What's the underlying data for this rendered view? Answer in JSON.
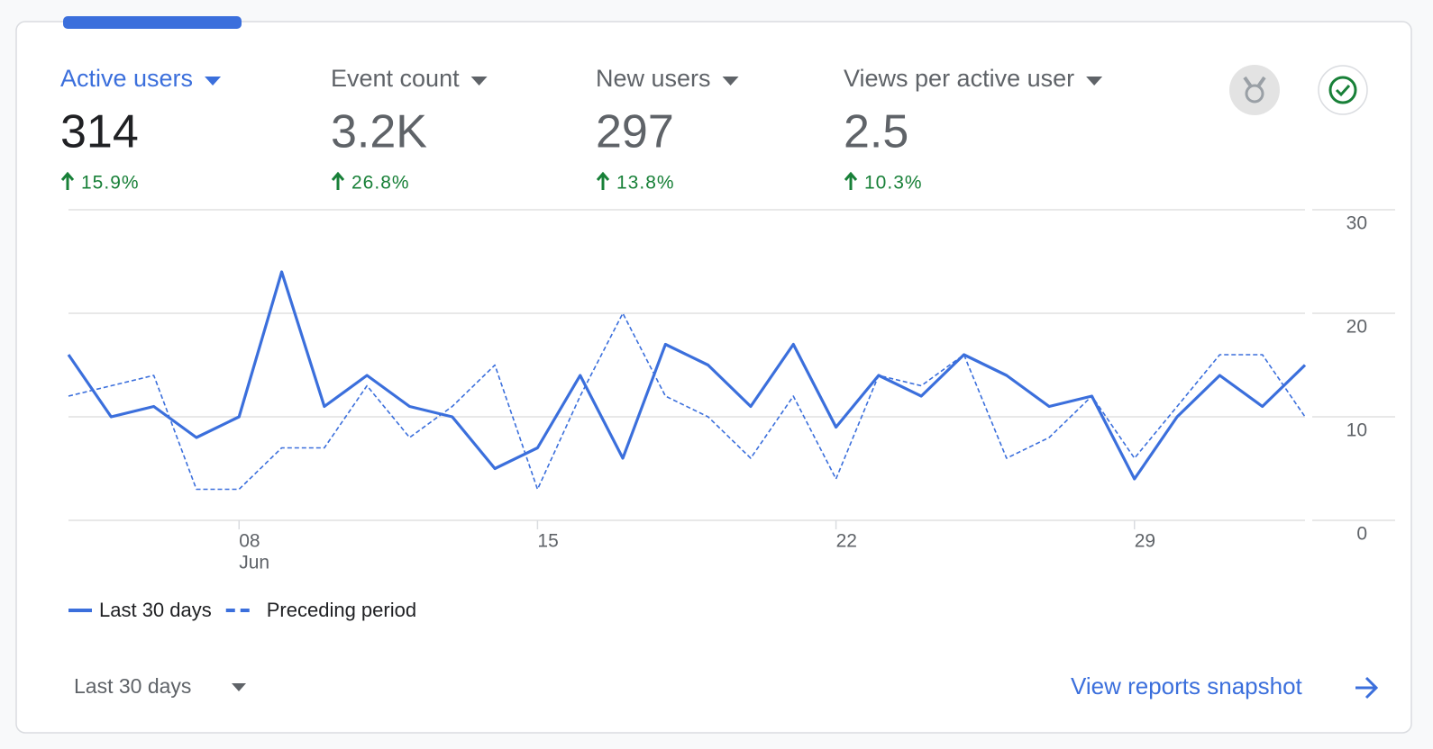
{
  "metrics": [
    {
      "label": "Active users",
      "value": "314",
      "change": "15.9%"
    },
    {
      "label": "Event count",
      "value": "3.2K",
      "change": "26.8%"
    },
    {
      "label": "New users",
      "value": "297",
      "change": "13.8%"
    },
    {
      "label": "Views per active user",
      "value": "2.5",
      "change": "10.3%"
    }
  ],
  "chart_data": {
    "type": "line",
    "categories": [
      null,
      null,
      null,
      null,
      "08",
      null,
      null,
      null,
      null,
      null,
      null,
      "15",
      null,
      null,
      null,
      null,
      null,
      null,
      "22",
      null,
      null,
      null,
      null,
      null,
      null,
      "29",
      null,
      null,
      null,
      null
    ],
    "month": "Jun",
    "series": [
      {
        "name": "Last 30 days",
        "color": "#3b6fdc",
        "style": "solid",
        "values": [
          16,
          10,
          11,
          8,
          10,
          24,
          11,
          14,
          11,
          10,
          5,
          7,
          14,
          6,
          17,
          15,
          11,
          17,
          9,
          14,
          12,
          16,
          14,
          11,
          12,
          4,
          10,
          14,
          11,
          15
        ]
      },
      {
        "name": "Preceding period",
        "color": "#3b6fdc",
        "style": "dashed",
        "values": [
          12,
          13,
          14,
          3,
          3,
          7,
          7,
          13,
          8,
          11,
          15,
          3,
          12,
          20,
          12,
          10,
          6,
          12,
          4,
          14,
          13,
          16,
          6,
          8,
          12,
          6,
          11,
          16,
          16,
          10
        ]
      }
    ],
    "ylim": [
      0,
      30
    ],
    "yticks": [
      0,
      10,
      20,
      30
    ],
    "grid": true,
    "legend": "bottom-left"
  },
  "footer": {
    "range": "Last 30 days",
    "link": "View reports snapshot"
  }
}
